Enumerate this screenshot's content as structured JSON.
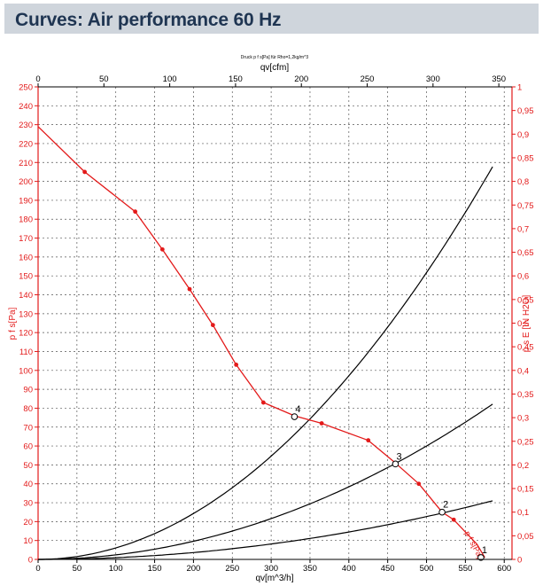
{
  "header": {
    "title": "Curves: Air performance 60 Hz"
  },
  "chart_data": {
    "type": "line",
    "subtitle": "Druck p f s[Pa] für Rho=1,2kg/m^3",
    "x_top": {
      "label": "qv[cfm]",
      "range": [
        0,
        360
      ],
      "ticks": [
        0,
        50,
        100,
        150,
        200,
        250,
        300,
        350
      ]
    },
    "x_bottom": {
      "label": "qv[m^3/h]",
      "range": [
        0,
        610
      ],
      "ticks": [
        0,
        50,
        100,
        150,
        200,
        250,
        300,
        350,
        400,
        450,
        500,
        550,
        600
      ]
    },
    "y_left": {
      "label": "p f s[Pa]",
      "range": [
        0,
        250
      ],
      "ticks": [
        0,
        10,
        20,
        30,
        40,
        50,
        60,
        70,
        80,
        90,
        100,
        110,
        120,
        130,
        140,
        150,
        160,
        170,
        180,
        190,
        200,
        210,
        220,
        230,
        240,
        250
      ]
    },
    "y_right": {
      "label": "p s E [IN H2O]",
      "range": [
        0,
        1
      ],
      "ticks": [
        "0",
        "0,05",
        "0,1",
        "0,15",
        "0,2",
        "0,25",
        "0,3",
        "0,35",
        "0,4",
        "0,45",
        "0,5",
        "0,55",
        "0,6",
        "0,65",
        "0,7",
        "0,75",
        "0,8",
        "0,85",
        "0,9",
        "0,95",
        "1"
      ]
    },
    "grid": true,
    "fan_curve": {
      "name": "p f s[Pa]",
      "color": "#e31a1a",
      "x": [
        0,
        60,
        125,
        160,
        195,
        225,
        255,
        290,
        330,
        365,
        425,
        460,
        490,
        520,
        535,
        565,
        575
      ],
      "y": [
        229,
        205,
        184,
        164,
        143,
        124,
        103,
        83,
        76,
        72,
        63,
        51,
        40,
        25,
        21,
        8,
        1
      ],
      "markers_x": [
        60,
        125,
        160,
        195,
        225,
        255,
        290,
        365,
        425,
        490,
        535
      ],
      "markers_y": [
        205,
        184,
        164,
        143,
        124,
        103,
        83,
        72,
        63,
        40,
        21
      ]
    },
    "system_curves": [
      {
        "color": "#000000",
        "k": 0.000607,
        "x_end": 585
      },
      {
        "color": "#000000",
        "k": 0.00024,
        "x_end": 585
      },
      {
        "color": "#000000",
        "k": 9.06e-05,
        "x_end": 585
      }
    ],
    "operating_points": [
      {
        "label": "4",
        "x": 330,
        "y": 75.5
      },
      {
        "label": "3",
        "x": 460,
        "y": 50.5
      },
      {
        "label": "2",
        "x": 520,
        "y": 25
      },
      {
        "label": "1",
        "x": 570,
        "y": 1
      }
    ]
  }
}
